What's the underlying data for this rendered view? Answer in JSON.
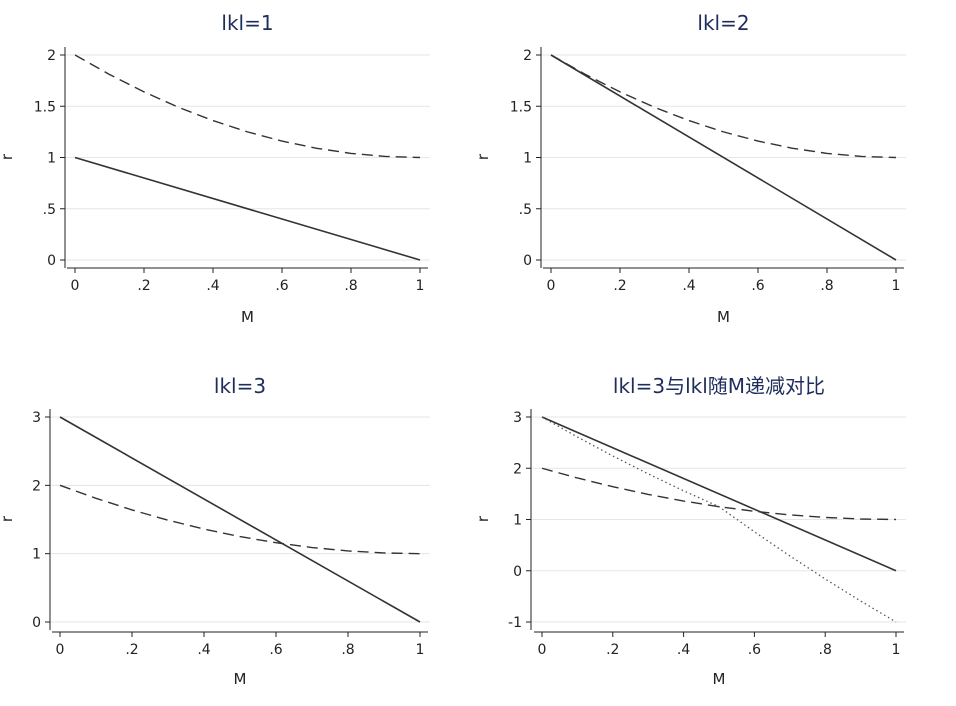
{
  "chart_data": [
    {
      "type": "line",
      "title": "lkl=1",
      "xlabel": "M",
      "ylabel": "r",
      "xlim": [
        0,
        1
      ],
      "ylim": [
        0,
        2
      ],
      "xticks": [
        0,
        0.2,
        0.4,
        0.6,
        0.8,
        1
      ],
      "xtick_labels": [
        "0",
        ".2",
        ".4",
        ".6",
        ".8",
        "1"
      ],
      "yticks": [
        0,
        0.5,
        1,
        1.5,
        2
      ],
      "ytick_labels": [
        "0",
        ".5",
        "1",
        "1.5",
        "2"
      ],
      "grid": true,
      "series": [
        {
          "style": "dashed",
          "x": [
            0,
            0.1,
            0.2,
            0.3,
            0.4,
            0.5,
            0.6,
            0.7,
            0.8,
            0.9,
            1
          ],
          "y": [
            2,
            1.81,
            1.64,
            1.49,
            1.36,
            1.25,
            1.16,
            1.09,
            1.04,
            1.01,
            1
          ]
        },
        {
          "style": "solid",
          "x": [
            0,
            1
          ],
          "y": [
            1,
            0
          ]
        }
      ]
    },
    {
      "type": "line",
      "title": "lkl=2",
      "xlabel": "M",
      "ylabel": "r",
      "xlim": [
        0,
        1
      ],
      "ylim": [
        0,
        2
      ],
      "xticks": [
        0,
        0.2,
        0.4,
        0.6,
        0.8,
        1
      ],
      "xtick_labels": [
        "0",
        ".2",
        ".4",
        ".6",
        ".8",
        "1"
      ],
      "yticks": [
        0,
        0.5,
        1,
        1.5,
        2
      ],
      "ytick_labels": [
        "0",
        ".5",
        "1",
        "1.5",
        "2"
      ],
      "grid": true,
      "series": [
        {
          "style": "dashed",
          "x": [
            0,
            0.1,
            0.2,
            0.3,
            0.4,
            0.5,
            0.6,
            0.7,
            0.8,
            0.9,
            1
          ],
          "y": [
            2,
            1.81,
            1.64,
            1.49,
            1.36,
            1.25,
            1.16,
            1.09,
            1.04,
            1.01,
            1
          ]
        },
        {
          "style": "solid",
          "x": [
            0,
            1
          ],
          "y": [
            2,
            0
          ]
        }
      ]
    },
    {
      "type": "line",
      "title": "lkl=3",
      "xlabel": "M",
      "ylabel": "r",
      "xlim": [
        0,
        1
      ],
      "ylim": [
        0,
        3
      ],
      "xticks": [
        0,
        0.2,
        0.4,
        0.6,
        0.8,
        1
      ],
      "xtick_labels": [
        "0",
        ".2",
        ".4",
        ".6",
        ".8",
        "1"
      ],
      "yticks": [
        0,
        1,
        2,
        3
      ],
      "ytick_labels": [
        "0",
        "1",
        "2",
        "3"
      ],
      "grid": true,
      "series": [
        {
          "style": "dashed",
          "x": [
            0,
            0.1,
            0.2,
            0.3,
            0.4,
            0.5,
            0.6,
            0.7,
            0.8,
            0.9,
            1
          ],
          "y": [
            2,
            1.81,
            1.64,
            1.49,
            1.36,
            1.25,
            1.16,
            1.09,
            1.04,
            1.01,
            1
          ]
        },
        {
          "style": "solid",
          "x": [
            0,
            1
          ],
          "y": [
            3,
            0
          ]
        }
      ]
    },
    {
      "type": "line",
      "title": "lkl=3与lkl随M递减对比",
      "xlabel": "M",
      "ylabel": "r",
      "xlim": [
        0,
        1
      ],
      "ylim": [
        -1,
        3
      ],
      "xticks": [
        0,
        0.2,
        0.4,
        0.6,
        0.8,
        1
      ],
      "xtick_labels": [
        "0",
        ".2",
        ".4",
        ".6",
        ".8",
        "1"
      ],
      "yticks": [
        -1,
        0,
        1,
        2,
        3
      ],
      "ytick_labels": [
        "-1",
        "0",
        "1",
        "2",
        "3"
      ],
      "grid": true,
      "series": [
        {
          "style": "dashed",
          "x": [
            0,
            0.1,
            0.2,
            0.3,
            0.4,
            0.5,
            0.6,
            0.7,
            0.8,
            0.9,
            1
          ],
          "y": [
            2,
            1.81,
            1.64,
            1.49,
            1.36,
            1.25,
            1.16,
            1.09,
            1.04,
            1.01,
            1
          ]
        },
        {
          "style": "solid",
          "x": [
            0,
            1
          ],
          "y": [
            3,
            0
          ]
        },
        {
          "style": "dotted",
          "x": [
            0,
            0.1,
            0.2,
            0.3,
            0.4,
            0.5,
            0.6,
            0.7,
            0.8,
            0.9,
            1
          ],
          "y": [
            3,
            2.61,
            2.24,
            1.89,
            1.56,
            1.25,
            0.76,
            0.29,
            -0.16,
            -0.59,
            -1
          ]
        }
      ]
    }
  ]
}
